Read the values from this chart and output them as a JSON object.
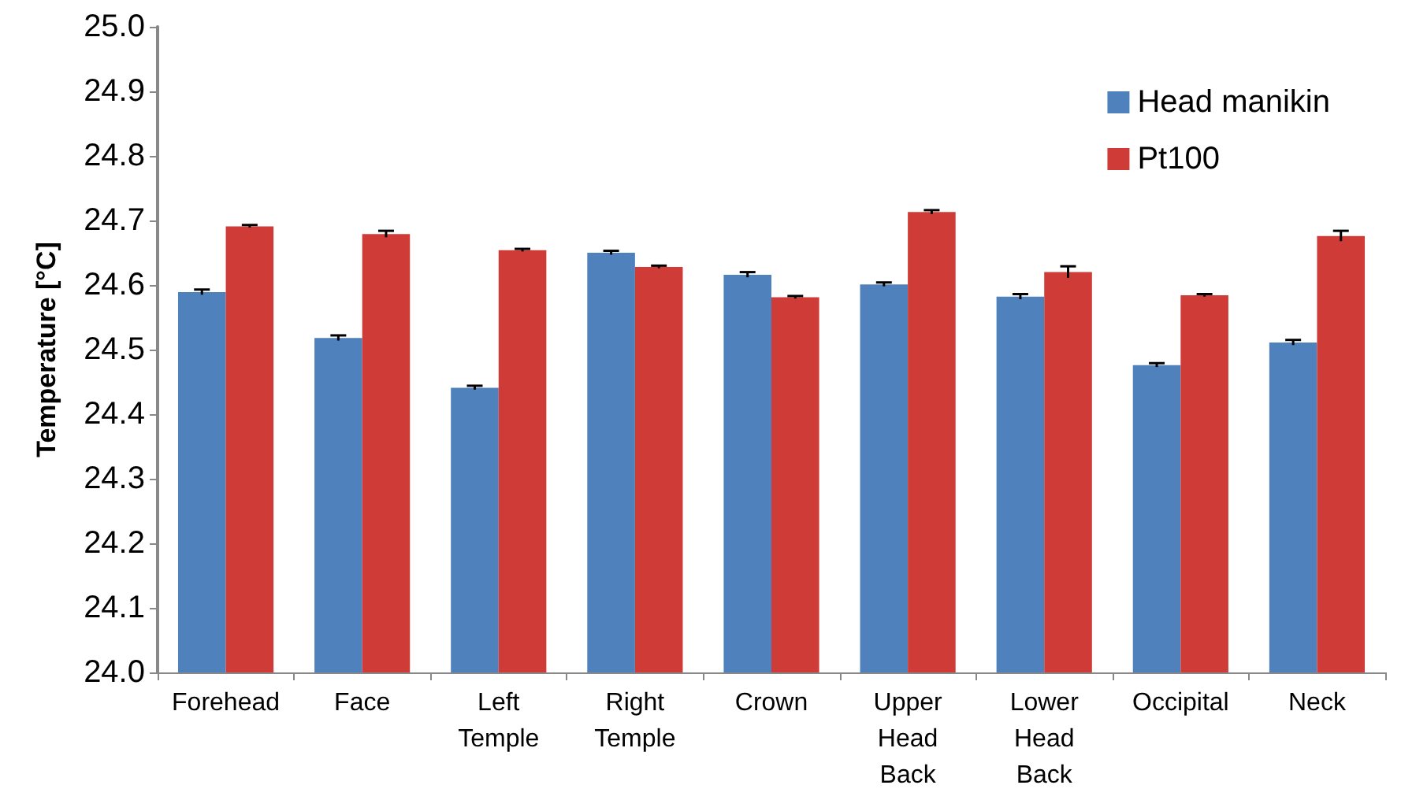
{
  "chart_data": {
    "type": "bar",
    "ylabel": "Temperature [°C]",
    "categories": [
      "Forehead",
      "Face",
      "Left Temple",
      "Right Temple",
      "Crown",
      "Upper Head Back",
      "Lower Head Back",
      "Occipital",
      "Neck"
    ],
    "series": [
      {
        "name": "Head manikin",
        "color": "#4f81bd",
        "values": [
          24.589,
          24.518,
          24.441,
          24.65,
          24.616,
          24.601,
          24.582,
          24.476,
          24.511
        ],
        "errors": [
          0.004,
          0.004,
          0.003,
          0.003,
          0.004,
          0.003,
          0.004,
          0.003,
          0.004
        ]
      },
      {
        "name": "Pt100",
        "color": "#cf3c38",
        "values": [
          24.691,
          24.679,
          24.654,
          24.628,
          24.581,
          24.713,
          24.62,
          24.584,
          24.676
        ],
        "errors": [
          0.002,
          0.005,
          0.002,
          0.002,
          0.002,
          0.003,
          0.009,
          0.002,
          0.008
        ]
      }
    ],
    "ylim": [
      24.0,
      25.0
    ],
    "yticks": [
      {
        "value": 24,
        "label": "24.0"
      },
      24.1,
      24.2,
      24.3,
      24.4,
      24.5,
      24.6,
      24.7,
      24.8,
      24.9,
      {
        "value": 25,
        "label": "25.0"
      }
    ],
    "legend": "top right"
  }
}
